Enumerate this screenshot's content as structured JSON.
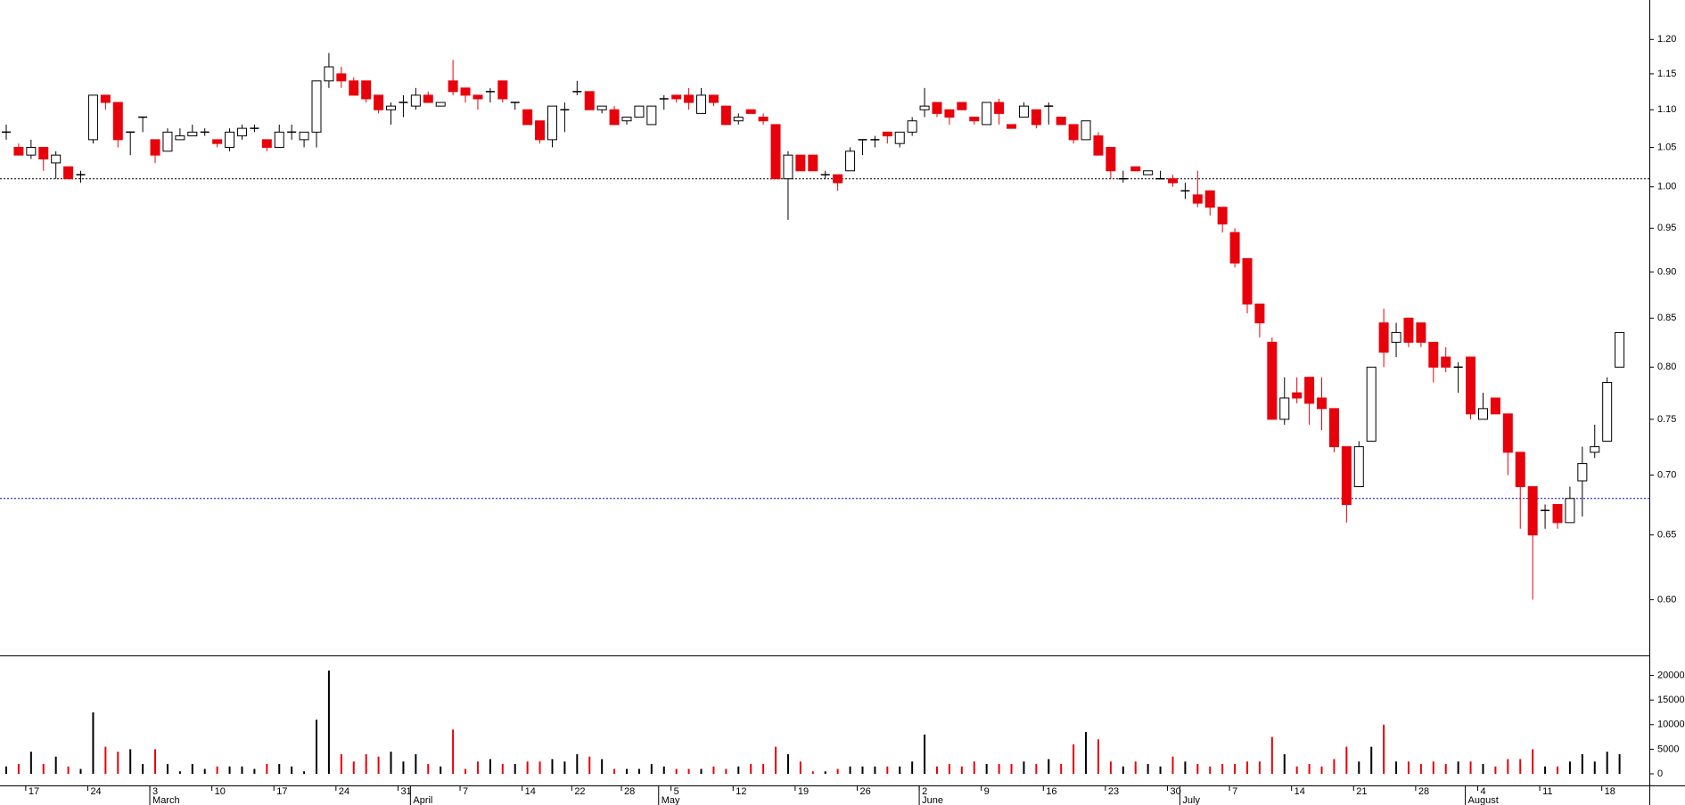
{
  "chart_data": [
    {
      "type": "candlestick",
      "log_scale": true,
      "up_color": "#ffffff",
      "down_color": "#e8000b",
      "edge_color": "#000000",
      "ylim": [
        0.56,
        1.26
      ],
      "yticks": [
        {
          "value": 0.6,
          "label": "0.60"
        },
        0.65,
        {
          "value": 0.7,
          "label": "0.70"
        },
        0.75,
        {
          "value": 0.8,
          "label": "0.80"
        },
        0.85,
        {
          "value": 0.9,
          "label": "0.90"
        },
        0.95,
        {
          "value": 1,
          "label": "1.00"
        },
        1.05,
        {
          "value": 1.1,
          "label": "1.10"
        },
        1.15,
        {
          "value": 1.2,
          "label": "1.20"
        }
      ],
      "reference_lines": [
        {
          "value": 1.01,
          "color": "#000000"
        },
        {
          "value": 0.68,
          "color": "#0000cc"
        }
      ],
      "categories": [
        null,
        null,
        "17",
        null,
        null,
        null,
        null,
        "24",
        null,
        null,
        null,
        null,
        "3",
        null,
        null,
        null,
        null,
        "10",
        null,
        null,
        null,
        null,
        "17",
        null,
        null,
        null,
        null,
        "24",
        null,
        null,
        null,
        null,
        "31",
        null,
        null,
        null,
        null,
        "7",
        null,
        null,
        null,
        null,
        "14",
        null,
        null,
        null,
        "22",
        null,
        null,
        null,
        "28",
        null,
        null,
        null,
        "5",
        null,
        null,
        null,
        null,
        "12",
        null,
        null,
        null,
        null,
        "19",
        null,
        null,
        null,
        null,
        "26",
        null,
        null,
        null,
        null,
        "2",
        null,
        null,
        null,
        null,
        "9",
        null,
        null,
        null,
        null,
        "16",
        null,
        null,
        null,
        null,
        "23",
        null,
        null,
        null,
        null,
        "30",
        null,
        null,
        null,
        null,
        "7",
        null,
        null,
        null,
        null,
        "14",
        null,
        null,
        null,
        null,
        "21",
        null,
        null,
        null,
        null,
        "28",
        null,
        null,
        null,
        null,
        "4",
        null,
        null,
        null,
        null,
        "11",
        null,
        null,
        null,
        null,
        "18",
        null
      ],
      "months": [
        null,
        null,
        null,
        null,
        null,
        null,
        null,
        null,
        null,
        null,
        null,
        null,
        "March",
        null,
        null,
        null,
        null,
        null,
        null,
        null,
        null,
        null,
        null,
        null,
        null,
        null,
        null,
        null,
        null,
        null,
        null,
        null,
        null,
        "April",
        null,
        null,
        null,
        null,
        null,
        null,
        null,
        null,
        null,
        null,
        null,
        null,
        null,
        null,
        null,
        null,
        null,
        null,
        null,
        "May",
        null,
        null,
        null,
        null,
        null,
        null,
        null,
        null,
        null,
        null,
        null,
        null,
        null,
        null,
        null,
        null,
        null,
        null,
        null,
        null,
        "June",
        null,
        null,
        null,
        null,
        null,
        null,
        null,
        null,
        null,
        null,
        null,
        null,
        null,
        null,
        null,
        null,
        null,
        null,
        null,
        null,
        "July",
        null,
        null,
        null,
        null,
        null,
        null,
        null,
        null,
        null,
        null,
        null,
        null,
        null,
        null,
        null,
        null,
        null,
        null,
        null,
        null,
        null,
        null,
        "August",
        null,
        null,
        null,
        null,
        null,
        null,
        null,
        null,
        null,
        null,
        null,
        null
      ],
      "open": [
        1.07,
        1.05,
        1.04,
        1.05,
        1.03,
        1.025,
        1.015,
        1.06,
        1.12,
        1.11,
        1.07,
        1.09,
        1.06,
        1.045,
        1.06,
        1.065,
        1.07,
        1.06,
        1.05,
        1.065,
        1.075,
        1.06,
        1.05,
        1.07,
        1.06,
        1.07,
        1.14,
        1.15,
        1.14,
        1.14,
        1.12,
        1.1,
        1.11,
        1.105,
        1.12,
        1.105,
        1.14,
        1.13,
        1.12,
        1.125,
        1.14,
        1.11,
        1.1,
        1.085,
        1.06,
        1.1,
        1.125,
        1.125,
        1.1,
        1.1,
        1.085,
        1.09,
        1.08,
        1.115,
        1.12,
        1.12,
        1.095,
        1.12,
        1.105,
        1.085,
        1.1,
        1.09,
        1.08,
        1.01,
        1.04,
        1.04,
        1.015,
        1.015,
        1.02,
        1.06,
        1.06,
        1.07,
        1.055,
        1.07,
        1.1,
        1.11,
        1.1,
        1.11,
        1.09,
        1.08,
        1.11,
        1.08,
        1.09,
        1.1,
        1.105,
        1.09,
        1.08,
        1.06,
        1.065,
        1.05,
        1.01,
        1.025,
        1.015,
        1.01,
        1.01,
        0.995,
        0.99,
        0.995,
        0.975,
        0.945,
        0.915,
        0.865,
        0.825,
        0.75,
        0.775,
        0.79,
        0.77,
        0.76,
        0.725,
        0.69,
        0.73,
        0.845,
        0.825,
        0.85,
        0.845,
        0.825,
        0.81,
        0.8,
        0.81,
        0.75,
        0.77,
        0.755,
        0.72,
        0.69,
        0.67,
        0.675,
        0.66,
        0.695,
        0.72,
        0.73,
        0.8
      ],
      "high": [
        1.08,
        1.055,
        1.06,
        1.05,
        1.045,
        1.025,
        1.02,
        1.12,
        1.12,
        1.11,
        1.07,
        1.09,
        1.06,
        1.075,
        1.075,
        1.08,
        1.075,
        1.06,
        1.075,
        1.08,
        1.08,
        1.06,
        1.08,
        1.08,
        1.07,
        1.14,
        1.18,
        1.16,
        1.145,
        1.14,
        1.12,
        1.11,
        1.12,
        1.13,
        1.125,
        1.11,
        1.17,
        1.13,
        1.12,
        1.13,
        1.14,
        1.11,
        1.1,
        1.085,
        1.105,
        1.11,
        1.14,
        1.125,
        1.105,
        1.105,
        1.09,
        1.105,
        1.105,
        1.12,
        1.12,
        1.13,
        1.13,
        1.12,
        1.105,
        1.095,
        1.1,
        1.095,
        1.08,
        1.045,
        1.04,
        1.04,
        1.02,
        1.015,
        1.05,
        1.06,
        1.065,
        1.07,
        1.07,
        1.09,
        1.13,
        1.11,
        1.1,
        1.11,
        1.09,
        1.11,
        1.115,
        1.08,
        1.11,
        1.1,
        1.11,
        1.09,
        1.08,
        1.085,
        1.07,
        1.05,
        1.02,
        1.025,
        1.02,
        1.02,
        1.015,
        1.005,
        1.02,
        0.995,
        0.975,
        0.95,
        0.915,
        0.865,
        0.83,
        0.79,
        0.79,
        0.79,
        0.79,
        0.76,
        0.725,
        0.73,
        0.8,
        0.86,
        0.845,
        0.85,
        0.845,
        0.825,
        0.82,
        0.805,
        0.81,
        0.775,
        0.77,
        0.755,
        0.72,
        0.69,
        0.675,
        0.675,
        0.69,
        0.725,
        0.745,
        0.79,
        0.835
      ],
      "low": [
        1.06,
        1.04,
        1.035,
        1.02,
        1.01,
        1.01,
        1.005,
        1.055,
        1.1,
        1.05,
        1.04,
        1.07,
        1.03,
        1.045,
        1.06,
        1.065,
        1.065,
        1.05,
        1.045,
        1.06,
        1.07,
        1.045,
        1.05,
        1.06,
        1.05,
        1.05,
        1.13,
        1.13,
        1.12,
        1.11,
        1.095,
        1.08,
        1.09,
        1.1,
        1.11,
        1.105,
        1.12,
        1.11,
        1.1,
        1.11,
        1.11,
        1.1,
        1.08,
        1.055,
        1.05,
        1.07,
        1.12,
        1.1,
        1.095,
        1.08,
        1.08,
        1.09,
        1.08,
        1.1,
        1.11,
        1.1,
        1.095,
        1.105,
        1.08,
        1.08,
        1.095,
        1.08,
        1.01,
        0.96,
        1.02,
        1.02,
        1.01,
        0.995,
        1.02,
        1.04,
        1.05,
        1.055,
        1.05,
        1.065,
        1.09,
        1.09,
        1.08,
        1.1,
        1.08,
        1.08,
        1.08,
        1.075,
        1.09,
        1.075,
        1.08,
        1.08,
        1.055,
        1.06,
        1.04,
        1.01,
        1.005,
        1.02,
        1.015,
        1.01,
        1.0,
        0.985,
        0.975,
        0.965,
        0.945,
        0.905,
        0.855,
        0.83,
        0.75,
        0.745,
        0.765,
        0.745,
        0.74,
        0.72,
        0.66,
        0.69,
        0.73,
        0.8,
        0.81,
        0.82,
        0.82,
        0.785,
        0.795,
        0.775,
        0.75,
        0.75,
        0.755,
        0.7,
        0.655,
        0.6,
        0.655,
        0.655,
        0.66,
        0.665,
        0.715,
        0.73,
        0.8
      ],
      "close": [
        1.07,
        1.04,
        1.05,
        1.035,
        1.04,
        1.01,
        1.015,
        1.12,
        1.11,
        1.06,
        1.07,
        1.09,
        1.04,
        1.07,
        1.065,
        1.07,
        1.07,
        1.055,
        1.07,
        1.075,
        1.075,
        1.05,
        1.07,
        1.07,
        1.07,
        1.14,
        1.16,
        1.14,
        1.12,
        1.115,
        1.1,
        1.105,
        1.11,
        1.12,
        1.11,
        1.11,
        1.125,
        1.12,
        1.115,
        1.125,
        1.115,
        1.11,
        1.08,
        1.06,
        1.105,
        1.1,
        1.125,
        1.1,
        1.105,
        1.08,
        1.09,
        1.105,
        1.105,
        1.115,
        1.115,
        1.11,
        1.12,
        1.11,
        1.08,
        1.09,
        1.095,
        1.085,
        1.01,
        1.04,
        1.02,
        1.02,
        1.015,
        1.005,
        1.045,
        1.06,
        1.06,
        1.065,
        1.07,
        1.085,
        1.105,
        1.095,
        1.09,
        1.1,
        1.085,
        1.11,
        1.095,
        1.075,
        1.105,
        1.08,
        1.105,
        1.08,
        1.06,
        1.085,
        1.04,
        1.02,
        1.01,
        1.02,
        1.02,
        1.01,
        1.005,
        0.995,
        0.98,
        0.975,
        0.955,
        0.91,
        0.865,
        0.845,
        0.75,
        0.77,
        0.77,
        0.765,
        0.76,
        0.725,
        0.675,
        0.725,
        0.8,
        0.815,
        0.835,
        0.825,
        0.825,
        0.8,
        0.8,
        0.8,
        0.755,
        0.76,
        0.755,
        0.72,
        0.69,
        0.65,
        0.67,
        0.66,
        0.68,
        0.71,
        0.725,
        0.785,
        0.835
      ]
    },
    {
      "type": "bar",
      "up_color": "#000000",
      "down_color": "#e8000b",
      "ylim": [
        0,
        23000
      ],
      "yticks": [
        0,
        5000,
        10000,
        15000,
        20000
      ],
      "values": [
        1500,
        2000,
        4500,
        2000,
        3500,
        1500,
        1000,
        12500,
        5500,
        4500,
        5000,
        2000,
        5000,
        2000,
        500,
        2000,
        1000,
        1500,
        1500,
        1500,
        1000,
        2000,
        2000,
        1500,
        500,
        11000,
        21000,
        4000,
        2500,
        4000,
        3500,
        4500,
        2500,
        4000,
        2000,
        1500,
        9000,
        1000,
        2500,
        3000,
        2000,
        2000,
        2500,
        2500,
        3000,
        2500,
        4000,
        3500,
        3000,
        1000,
        1000,
        1000,
        2000,
        1500,
        1000,
        1000,
        1000,
        1500,
        1000,
        1500,
        2000,
        2000,
        5500,
        4000,
        2500,
        500,
        500,
        1000,
        1500,
        1500,
        1500,
        1500,
        1500,
        2500,
        8000,
        1500,
        2000,
        1500,
        2500,
        2000,
        2000,
        2000,
        2500,
        2000,
        3000,
        2000,
        6000,
        8500,
        7000,
        2500,
        1500,
        2500,
        2000,
        1500,
        3500,
        2500,
        2000,
        1500,
        2000,
        2000,
        2500,
        2500,
        7500,
        4000,
        1500,
        2000,
        1500,
        3000,
        5500,
        2500,
        5500,
        10000,
        2500,
        2500,
        2000,
        2500,
        2000,
        2500,
        2500,
        2000,
        1500,
        3000,
        3000,
        5000,
        1500,
        1500,
        2500,
        4000,
        2500,
        4500,
        4000
      ]
    }
  ]
}
